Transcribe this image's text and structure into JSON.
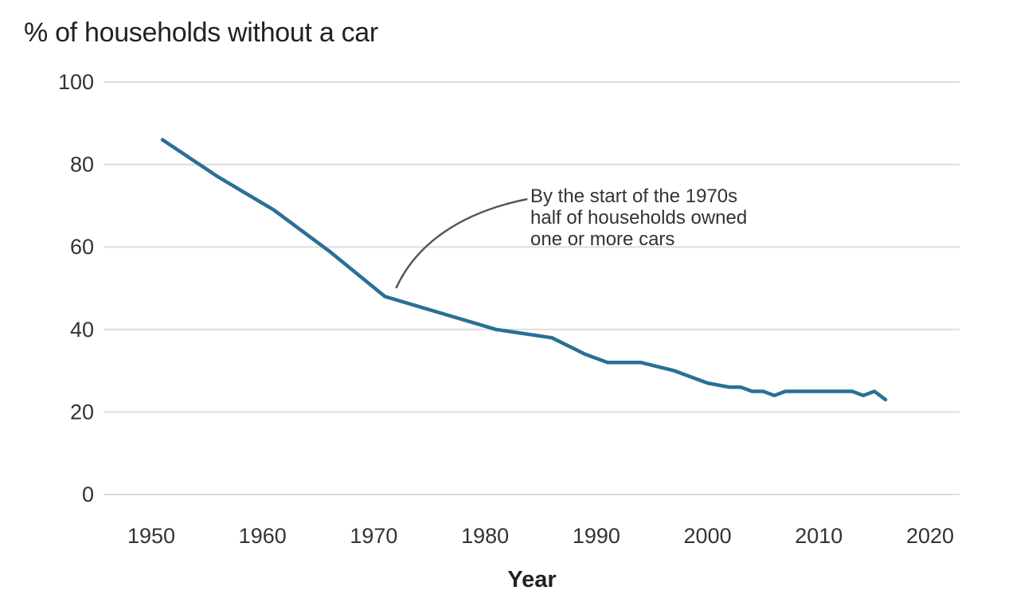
{
  "chart_data": {
    "type": "line",
    "title": "% of households without a car",
    "xlabel": "Year",
    "ylabel": "",
    "xlim": [
      1950,
      2020
    ],
    "ylim": [
      0,
      100
    ],
    "x_ticks": [
      1950,
      1960,
      1970,
      1980,
      1990,
      2000,
      2010,
      2020
    ],
    "y_ticks": [
      0,
      20,
      40,
      60,
      80,
      100
    ],
    "grid": "horizontal",
    "colors": {
      "line": "#2a6f97",
      "grid": "#dddddd",
      "annotation": "#555555"
    },
    "series": [
      {
        "x": [
          1951,
          1956,
          1961,
          1966,
          1971,
          1976,
          1981,
          1986,
          1989,
          1991,
          1994,
          1997,
          2000,
          2002,
          2003,
          2004,
          2005,
          2006,
          2007,
          2008,
          2009,
          2010,
          2011,
          2012,
          2013,
          2014,
          2015,
          2016
        ],
        "values": [
          86,
          77,
          69,
          59,
          48,
          44,
          40,
          38,
          34,
          32,
          32,
          30,
          27,
          26,
          26,
          25,
          25,
          24,
          25,
          25,
          25,
          25,
          25,
          25,
          25,
          24,
          25,
          23
        ]
      }
    ],
    "annotations": [
      {
        "lines": [
          "By the start of the 1970s",
          "half of households owned",
          "one or more cars"
        ],
        "target_x": 1972,
        "target_y": 50
      }
    ]
  }
}
